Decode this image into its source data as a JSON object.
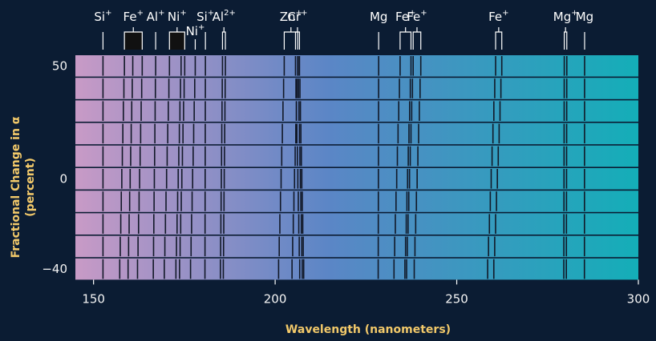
{
  "chart_data": {
    "type": "spectrum",
    "title": "",
    "xlabel": "Wavelength (nanometers)",
    "ylabel": "Fractional Change in α",
    "ylabel_sub": "(percent)",
    "xlim": [
      145,
      300
    ],
    "x_ticks": [
      "150",
      "200",
      "250",
      "300"
    ],
    "y_ticks": [
      "50",
      "0",
      "−40"
    ],
    "y_tick_values": [
      50,
      0,
      -40
    ],
    "rows": [
      50,
      40,
      30,
      20,
      10,
      0,
      -10,
      -20,
      -30,
      -40
    ],
    "colors": {
      "left": "#c89ac6",
      "middle": "#5b86c6",
      "right": "#14aeb8",
      "background": "#0b1c33",
      "label": "#f2c96a"
    },
    "ions": [
      {
        "name": "Si",
        "charge": "+",
        "lines": [
          152.6
        ],
        "sensitivity": 0.0
      },
      {
        "name": "Fe",
        "charge": "+",
        "lines": [
          158.5,
          160.8,
          163.4
        ],
        "sensitivity": 0.5
      },
      {
        "name": "Al",
        "charge": "+",
        "lines": [
          167.1
        ],
        "sensitivity": 0.25
      },
      {
        "name": "Ni",
        "charge": "+",
        "lines": [
          170.9,
          174.1,
          175.1
        ],
        "sensitivity": 0.55
      },
      {
        "name": "Si",
        "charge": "+",
        "lines": [
          180.8
        ],
        "sensitivity": 0.05
      },
      {
        "name": "Ni",
        "charge": "+",
        "lines": [
          178.0
        ],
        "sensitivity": 0.5
      },
      {
        "name": "Al",
        "charge": "2+",
        "lines": [
          185.5,
          186.3
        ],
        "sensitivity": 0.22
      },
      {
        "name": "Zn",
        "charge": "+",
        "lines": [
          202.5,
          206.2
        ],
        "sensitivity": 0.6
      },
      {
        "name": "Cr",
        "charge": "+",
        "lines": [
          205.6,
          206.3,
          206.7
        ],
        "sensitivity": -0.45
      },
      {
        "name": "Fe",
        "charge": "+",
        "lines": [
          234.4,
          237.4
        ],
        "sensitivity": 0.65
      },
      {
        "name": "Mg",
        "charge": "",
        "lines": [
          228.5
        ],
        "sensitivity": 0.05
      },
      {
        "name": "Fe",
        "charge": "+",
        "lines": [
          238.0,
          240.1
        ],
        "sensitivity": 0.7
      },
      {
        "name": "Fe",
        "charge": "+",
        "lines": [
          260.7,
          262.4
        ],
        "sensitivity": 0.85
      },
      {
        "name": "Mg",
        "charge": "+",
        "lines": [
          279.6,
          280.3
        ],
        "sensitivity": 0.05
      },
      {
        "name": "Mg",
        "charge": "",
        "lines": [
          285.2
        ],
        "sensitivity": 0.02
      }
    ]
  }
}
